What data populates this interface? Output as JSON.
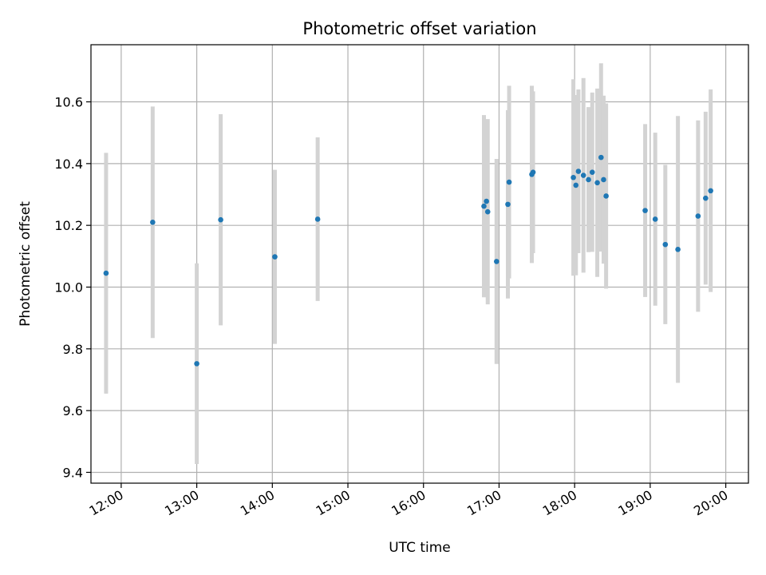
{
  "chart_data": {
    "type": "scatter",
    "title": "Photometric offset variation",
    "xlabel": "UTC time",
    "ylabel": "Photometric offset",
    "x_tick_labels": [
      "12:00",
      "13:00",
      "14:00",
      "15:00",
      "16:00",
      "17:00",
      "18:00",
      "19:00",
      "20:00"
    ],
    "x_ticks": [
      "12:00",
      "13:00",
      "14:00",
      "15:00",
      "16:00",
      "17:00",
      "18:00",
      "19:00",
      "20:00"
    ],
    "y_ticks": [
      9.4,
      9.6,
      9.8,
      10.0,
      10.2,
      10.4,
      10.6
    ],
    "y_tick_labels": [
      "9.4",
      "9.6",
      "9.8",
      "10.0",
      "10.2",
      "10.4",
      "10.6"
    ],
    "xlim": [
      "11:36",
      "20:18"
    ],
    "ylim": [
      9.365,
      10.785
    ],
    "grid": true,
    "colors": {
      "point": "#1f77b4",
      "errorbar": "#d3d3d3",
      "grid": "#b0b0b0"
    },
    "series": [
      {
        "points": [
          {
            "x": "11:48",
            "y": 10.045,
            "err": 0.39
          },
          {
            "x": "12:25",
            "y": 10.21,
            "err": 0.375
          },
          {
            "x": "13:00",
            "y": 9.752,
            "err": 0.325
          },
          {
            "x": "13:19",
            "y": 10.218,
            "err": 0.342
          },
          {
            "x": "14:02",
            "y": 10.098,
            "err": 0.282
          },
          {
            "x": "14:36",
            "y": 10.22,
            "err": 0.265
          },
          {
            "x": "16:48",
            "y": 10.262,
            "err": 0.295
          },
          {
            "x": "16:50",
            "y": 10.278,
            "err": 0.262
          },
          {
            "x": "16:51",
            "y": 10.244,
            "err": 0.3
          },
          {
            "x": "16:58",
            "y": 10.083,
            "err": 0.332
          },
          {
            "x": "17:07",
            "y": 10.268,
            "err": 0.305
          },
          {
            "x": "17:08",
            "y": 10.34,
            "err": 0.312
          },
          {
            "x": "17:26",
            "y": 10.365,
            "err": 0.287
          },
          {
            "x": "17:27",
            "y": 10.372,
            "err": 0.262
          },
          {
            "x": "17:59",
            "y": 10.355,
            "err": 0.318
          },
          {
            "x": "18:01",
            "y": 10.33,
            "err": 0.292
          },
          {
            "x": "18:03",
            "y": 10.375,
            "err": 0.265
          },
          {
            "x": "18:07",
            "y": 10.362,
            "err": 0.315
          },
          {
            "x": "18:11",
            "y": 10.348,
            "err": 0.235
          },
          {
            "x": "18:14",
            "y": 10.372,
            "err": 0.258
          },
          {
            "x": "18:18",
            "y": 10.338,
            "err": 0.305
          },
          {
            "x": "18:21",
            "y": 10.42,
            "err": 0.305
          },
          {
            "x": "18:23",
            "y": 10.348,
            "err": 0.272
          },
          {
            "x": "18:25",
            "y": 10.295,
            "err": 0.3
          },
          {
            "x": "18:56",
            "y": 10.248,
            "err": 0.28
          },
          {
            "x": "19:04",
            "y": 10.22,
            "err": 0.28
          },
          {
            "x": "19:12",
            "y": 10.138,
            "err": 0.258
          },
          {
            "x": "19:22",
            "y": 10.122,
            "err": 0.432
          },
          {
            "x": "19:38",
            "y": 10.23,
            "err": 0.31
          },
          {
            "x": "19:44",
            "y": 10.288,
            "err": 0.28
          },
          {
            "x": "19:48",
            "y": 10.312,
            "err": 0.328
          }
        ]
      }
    ]
  }
}
